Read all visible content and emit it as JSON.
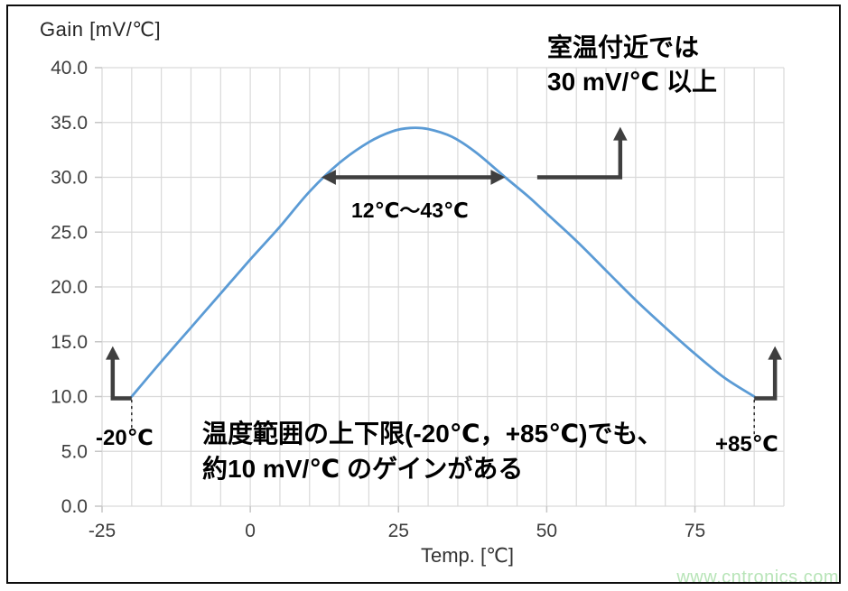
{
  "watermark": "www.cntronics.com",
  "chart_data": {
    "type": "line",
    "title": "Gain [mV/℃]",
    "xlabel": "Temp. [℃]",
    "ylabel": "Gain [mV/℃]",
    "xlim": [
      -25,
      90
    ],
    "ylim": [
      0,
      40
    ],
    "x_grid_step": 5,
    "y_grid_step": 5,
    "grid": true,
    "x_ticks": [
      -25,
      0,
      25,
      50,
      75
    ],
    "x_tick_labels": [
      "-25",
      "0",
      "25",
      "50",
      "75"
    ],
    "y_ticks": [
      40,
      35,
      30,
      25,
      20,
      15,
      10,
      5,
      0
    ],
    "y_tick_labels": [
      "40.0",
      "35.0",
      "30.0",
      "25.0",
      "20.0",
      "15.0",
      "10.0",
      "5.0",
      "0.0"
    ],
    "colors": {
      "grid": "#d9d9d9",
      "tick": "#c6c6c6",
      "tick_label": "#3d3d3d",
      "arrow": "#3f3f3f",
      "dash": "#1a1a1a"
    },
    "series": [
      {
        "name": "Gain",
        "color": "#5B9BD5",
        "points": [
          [
            -20,
            10
          ],
          [
            -15,
            13.2
          ],
          [
            -10,
            16.3
          ],
          [
            -5,
            19.4
          ],
          [
            0,
            22.5
          ],
          [
            5,
            25.5
          ],
          [
            10,
            28.7
          ],
          [
            15,
            31.3
          ],
          [
            20,
            33.2
          ],
          [
            24,
            34.2
          ],
          [
            27,
            34.5
          ],
          [
            30,
            34.4
          ],
          [
            34,
            33.7
          ],
          [
            38,
            32.3
          ],
          [
            43,
            30
          ],
          [
            47,
            28.2
          ],
          [
            50,
            26.7
          ],
          [
            55,
            24.2
          ],
          [
            60,
            21.5
          ],
          [
            65,
            18.8
          ],
          [
            70,
            16.3
          ],
          [
            75,
            13.9
          ],
          [
            80,
            11.7
          ],
          [
            85,
            10
          ]
        ]
      }
    ],
    "annotations": {
      "range_arrow": {
        "y": 30,
        "x1": 12,
        "x2": 43
      },
      "room_elbow": {
        "y": 30,
        "x1": 48.4,
        "x2": 62.4,
        "y_top": 34.6
      },
      "left_elbow": {
        "x": -23.2,
        "x_foot": -20,
        "y": 10,
        "y_top": 14.6
      },
      "right_elbow": {
        "x": 88.5,
        "x_foot": 85,
        "y": 10,
        "y_top": 14.6
      },
      "dash_left": {
        "x": -20,
        "y1": 9.7,
        "y2": 7.0
      },
      "dash_right": {
        "x": 85,
        "y1": 9.7,
        "y2": 6.4
      }
    }
  },
  "annotations": {
    "room_temp_line1": "室温付近では",
    "room_temp_line2": "30 mV/℃ 以上",
    "range_label": "12℃～43℃",
    "bottom_line1": "温度範囲の上下限(-20℃，+85℃)でも、",
    "bottom_line2": "約10 mV/℃ のゲインがある",
    "left_point_label": "-20℃",
    "right_point_label": "+85℃"
  }
}
